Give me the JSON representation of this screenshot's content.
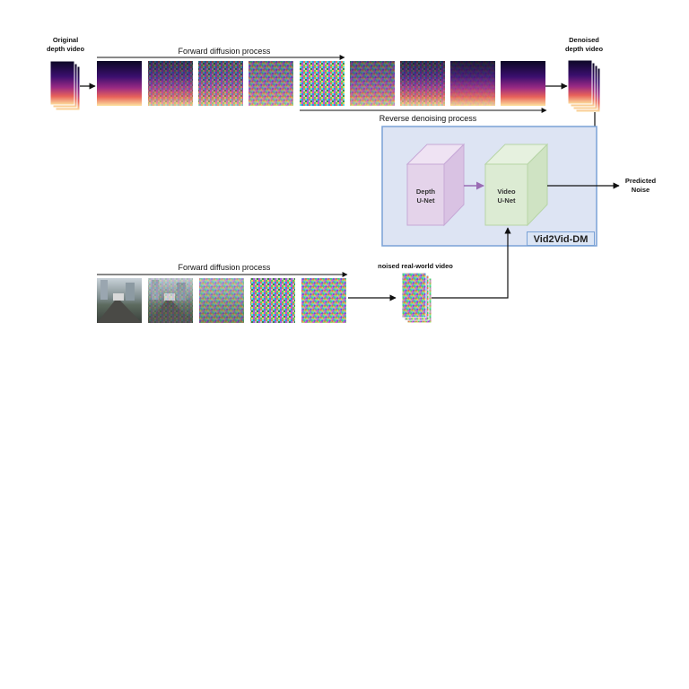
{
  "labels": {
    "original_depth_video": [
      "Original",
      "depth video"
    ],
    "denoised_depth_video": [
      "Denoised",
      "depth video"
    ],
    "forward_diffusion_top": "Forward diffusion process",
    "reverse_denoising": "Reverse denoising process",
    "forward_diffusion_bottom": "Forward diffusion process",
    "noised_real_world_video": "noised real-world video",
    "predicted_noise": [
      "Predicted",
      "Noise"
    ],
    "depth_unet": [
      "Depth",
      "U-Net"
    ],
    "video_unet": [
      "Video",
      "U-Net"
    ],
    "model_name": "Vid2Vid-DM"
  },
  "colors": {
    "panel_fill": "#dde4f3",
    "panel_border": "#7aa2d6",
    "depth_cube": "#e4d3ea",
    "depth_cube_border": "#c6a8d6",
    "video_cube": "#dcebd3",
    "video_cube_border": "#b7d5a6",
    "inner_arrow": "#9a6cb4"
  },
  "icons": {
    "depth_frame": "depth-map-frame",
    "street_frame": "street-scene-frame",
    "noise_frame": "noise-frame"
  }
}
